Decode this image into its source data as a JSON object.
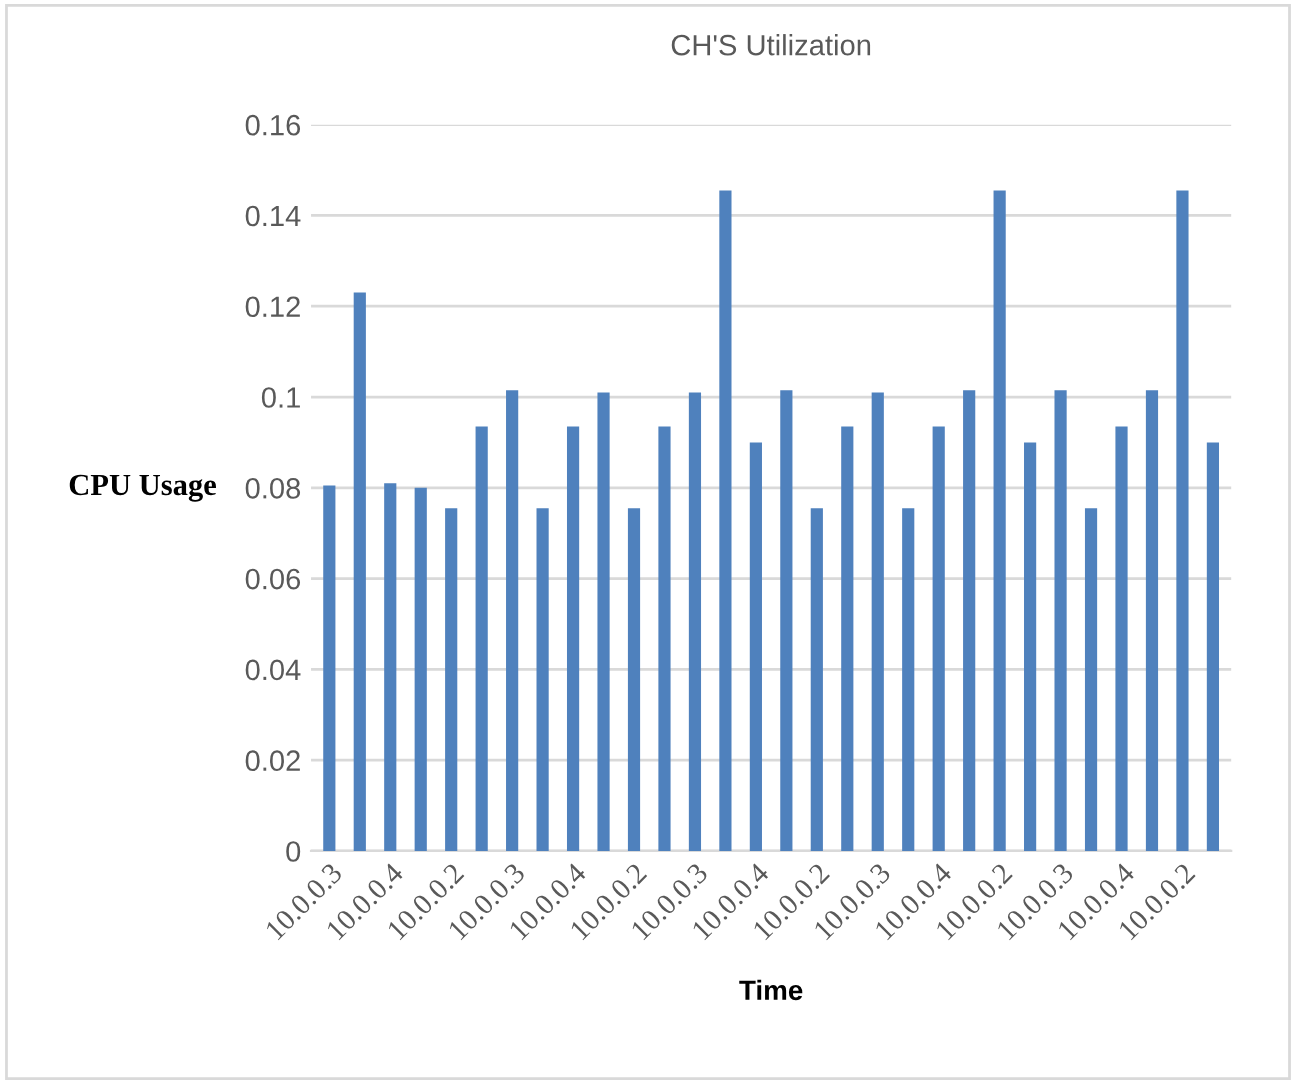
{
  "chart_data": {
    "type": "bar",
    "title": "CH'S Utilization",
    "xlabel": "Time",
    "ylabel": "CPU Usage",
    "categories": [
      "10.0.0.3",
      null,
      "10.0.0.4",
      null,
      "10.0.0.2",
      null,
      "10.0.0.3",
      null,
      "10.0.0.4",
      null,
      "10.0.0.2",
      null,
      "10.0.0.3",
      null,
      "10.0.0.4",
      null,
      "10.0.0.2",
      null,
      "10.0.0.3",
      null,
      "10.0.0.4",
      null,
      "10.0.0.2",
      null,
      "10.0.0.3",
      null,
      "10.0.0.4",
      null,
      "10.0.0.2",
      null
    ],
    "values": [
      0.0805,
      0.123,
      0.081,
      0.08,
      0.0755,
      0.0935,
      0.1015,
      0.0755,
      0.0935,
      0.101,
      0.0755,
      0.0935,
      0.101,
      0.1455,
      0.09,
      0.1015,
      0.0755,
      0.0935,
      0.101,
      0.0755,
      0.0935,
      0.1015,
      0.1455,
      0.09,
      0.1015,
      0.0755,
      0.0935,
      0.1015,
      0.1455,
      0.09
    ],
    "color": "#4f81bd",
    "ylim": [
      0,
      0.16
    ],
    "yticks": [
      {
        "value": 0,
        "label": "0"
      },
      0.02,
      0.04,
      0.06,
      0.08,
      {
        "value": 0.1,
        "label": "0.1"
      },
      0.12,
      0.14,
      0.16
    ],
    "grid": "y"
  }
}
